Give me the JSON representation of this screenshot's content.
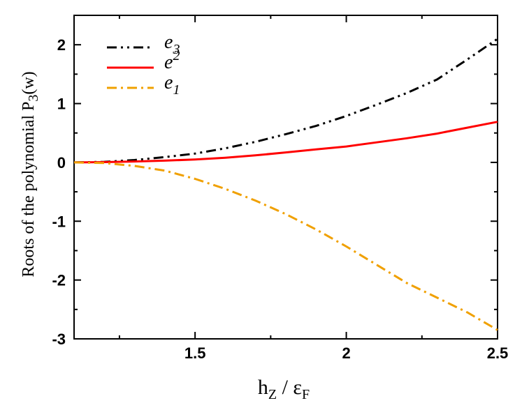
{
  "chart_data": {
    "type": "line",
    "title": "",
    "xlabel": {
      "main": "h",
      "sub1": "Z",
      "sep": " / ",
      "eps": "ε",
      "sub2": "F"
    },
    "ylabel": {
      "main": "Roots of the polynomial P",
      "sub": "3",
      "arg": "(w)"
    },
    "xlim": [
      1.1,
      2.5
    ],
    "ylim": [
      -3,
      2.5
    ],
    "x_ticks": [
      1.5,
      2,
      2.5
    ],
    "x_tick_labels": [
      "1.5",
      "2",
      "2.5"
    ],
    "y_ticks": [
      -3,
      -2,
      -1,
      0,
      1,
      2
    ],
    "y_tick_labels": [
      "-3",
      "-2",
      "-1",
      "0",
      "1",
      "2"
    ],
    "legend_position": "top-left",
    "series": [
      {
        "name": "e",
        "name_sub": "3",
        "color": "#000000",
        "style": "dash-dot-dot",
        "x": [
          1.1,
          1.2,
          1.3,
          1.4,
          1.5,
          1.6,
          1.7,
          1.8,
          1.9,
          2.0,
          2.1,
          2.2,
          2.3,
          2.4,
          2.5
        ],
        "y": [
          0.0,
          0.01,
          0.04,
          0.09,
          0.15,
          0.24,
          0.35,
          0.48,
          0.62,
          0.79,
          0.98,
          1.18,
          1.41,
          1.75,
          2.1
        ]
      },
      {
        "name": "e",
        "name_sub": "2",
        "color": "#ff0000",
        "style": "solid",
        "x": [
          1.1,
          1.2,
          1.3,
          1.4,
          1.5,
          1.6,
          1.7,
          1.8,
          1.9,
          2.0,
          2.1,
          2.2,
          2.3,
          2.4,
          2.5
        ],
        "y": [
          0.0,
          0.005,
          0.015,
          0.03,
          0.05,
          0.08,
          0.12,
          0.17,
          0.22,
          0.27,
          0.34,
          0.41,
          0.49,
          0.59,
          0.69
        ]
      },
      {
        "name": "e",
        "name_sub": "1",
        "color": "#f0a000",
        "style": "dash-dot",
        "x": [
          1.1,
          1.2,
          1.3,
          1.4,
          1.5,
          1.6,
          1.7,
          1.8,
          1.9,
          2.0,
          2.1,
          2.2,
          2.3,
          2.4,
          2.5
        ],
        "y": [
          0.0,
          -0.01,
          -0.06,
          -0.14,
          -0.28,
          -0.45,
          -0.65,
          -0.88,
          -1.14,
          -1.43,
          -1.74,
          -2.05,
          -2.3,
          -2.55,
          -2.85
        ]
      }
    ]
  }
}
